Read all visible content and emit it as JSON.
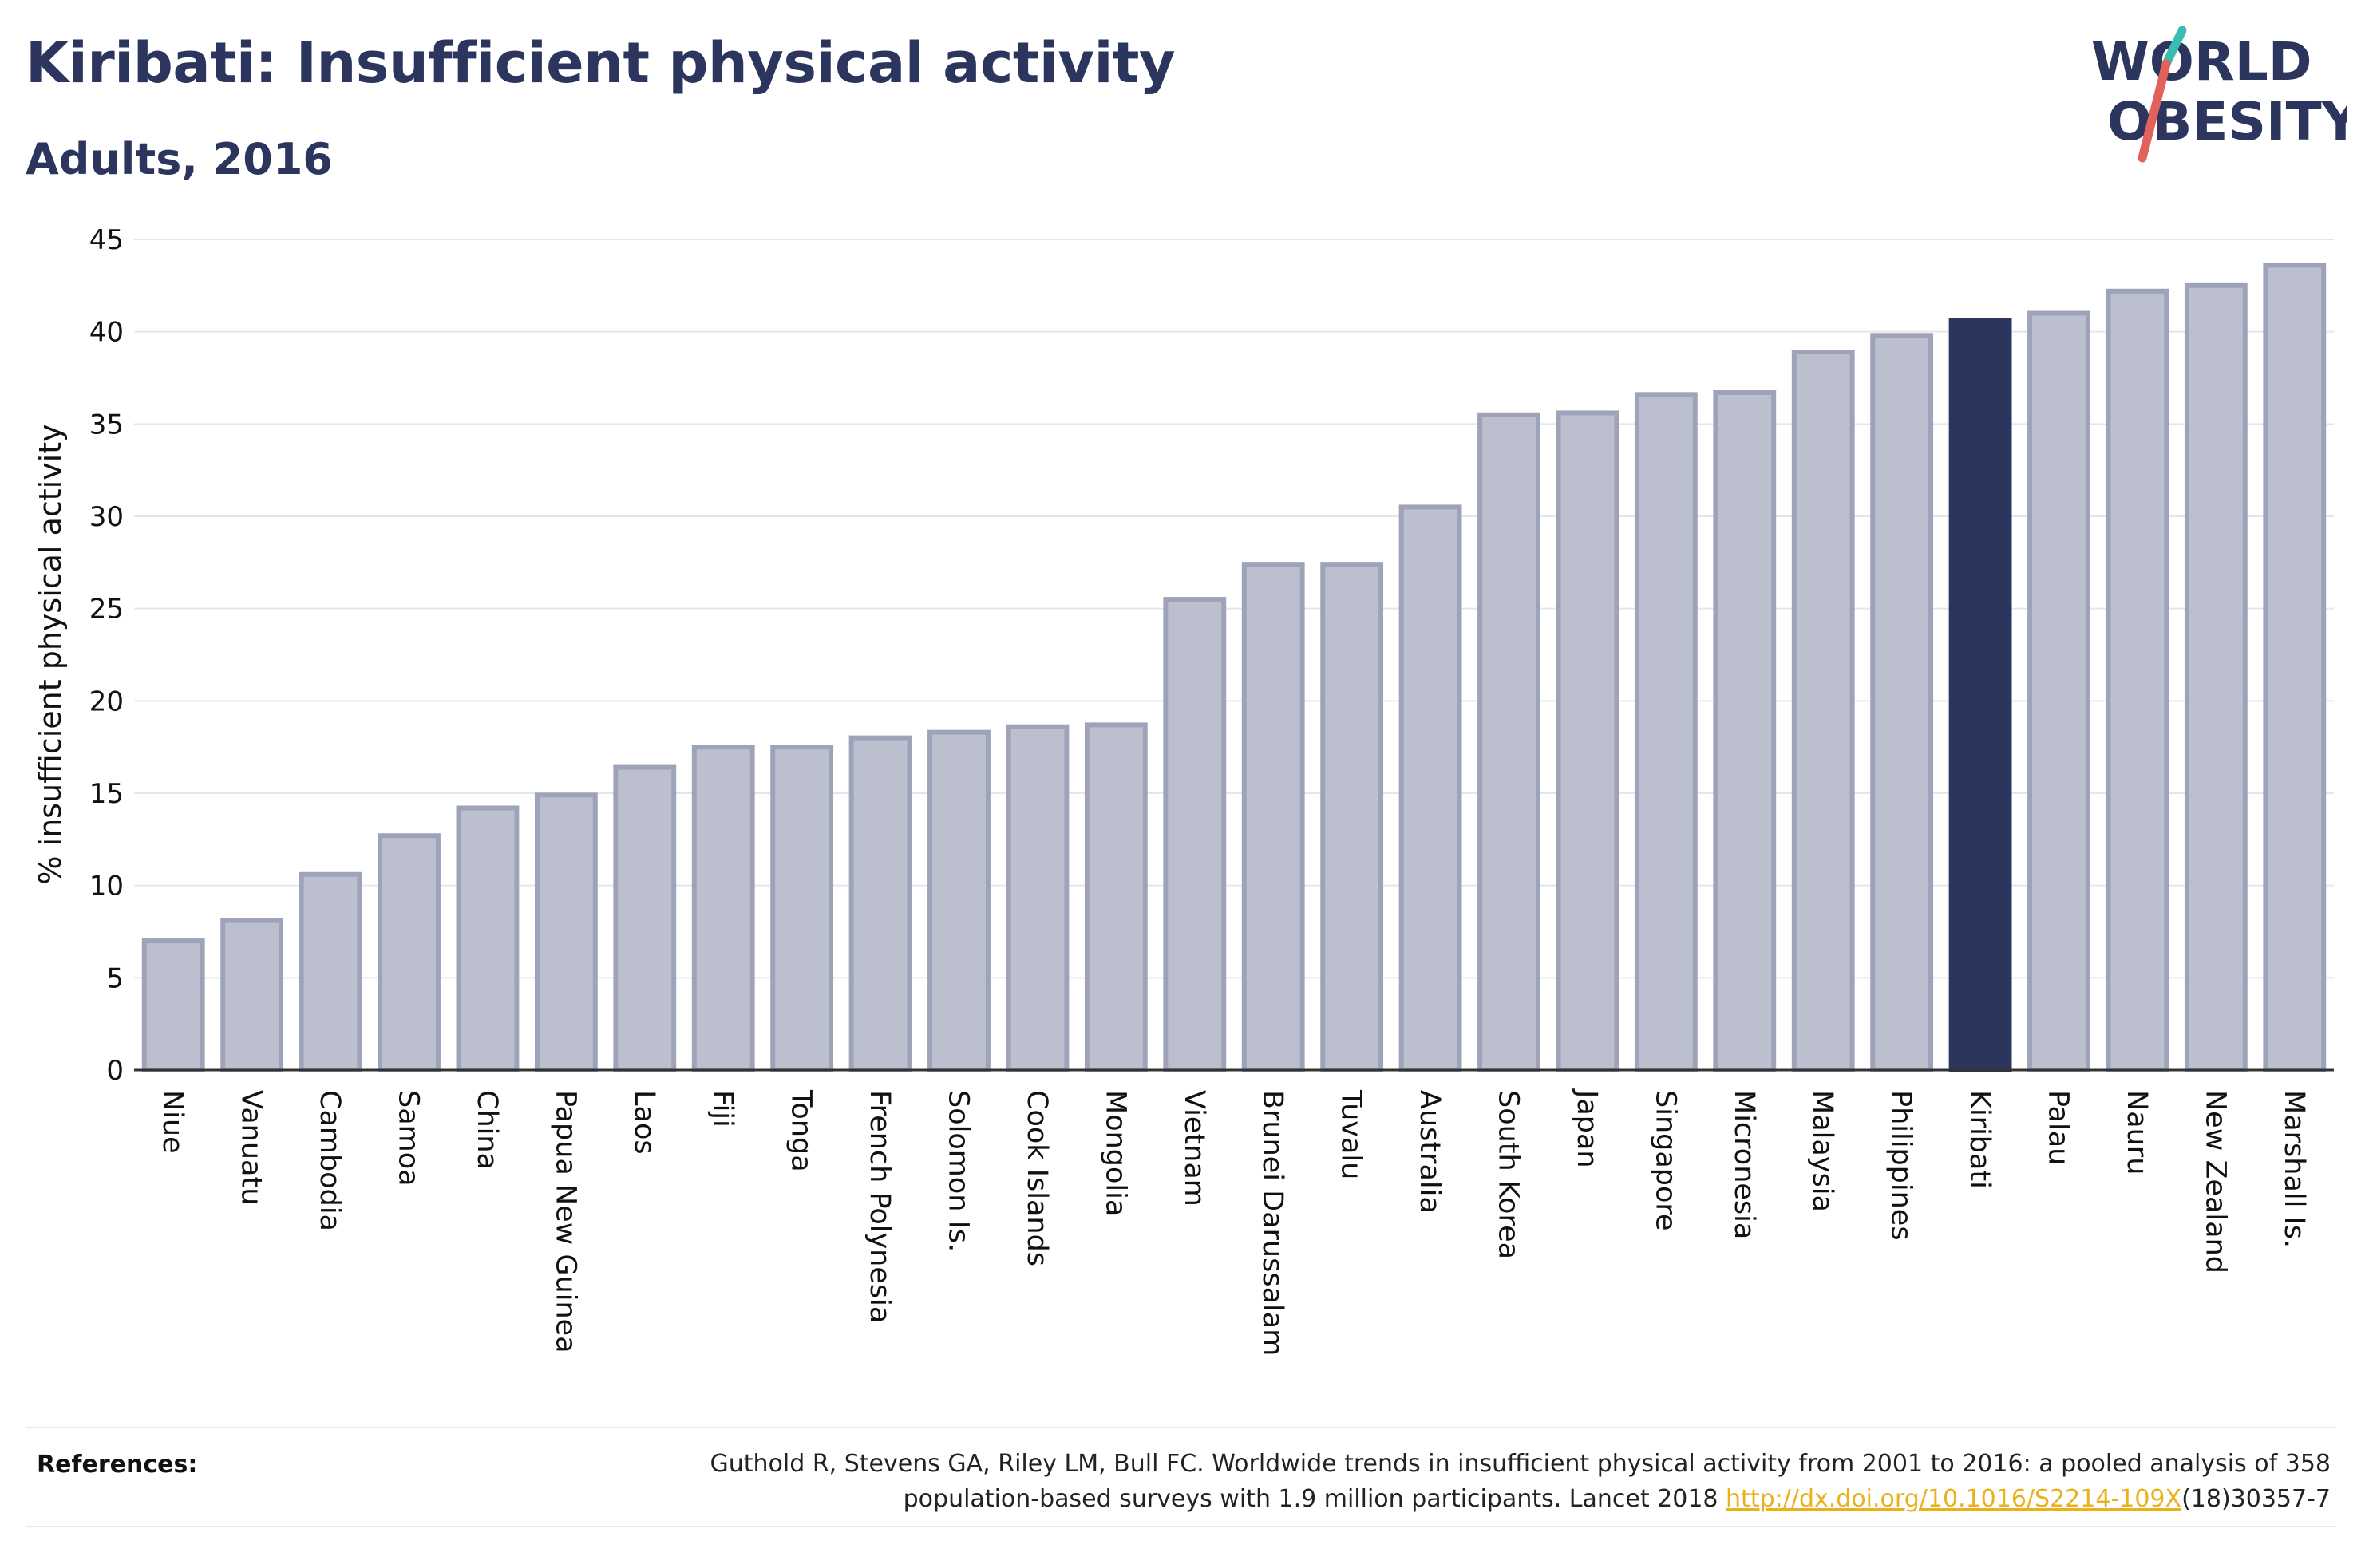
{
  "header": {
    "title": "Kiribati: Insufficient physical activity",
    "subtitle": "Adults, 2016"
  },
  "logo": {
    "line1": "WORLD",
    "line2": "OBESITY"
  },
  "chart_data": {
    "type": "bar",
    "ylabel": "% insufficient physical activity",
    "ylim": [
      0,
      45
    ],
    "yticks": [
      0,
      5,
      10,
      15,
      20,
      25,
      30,
      35,
      40,
      45
    ],
    "grid": true,
    "highlight": "Kiribati",
    "colors": {
      "bar": "#bcc0ce",
      "bar_border": "#9ea3b9",
      "highlight": "#2b355e"
    },
    "categories": [
      "Niue",
      "Vanuatu",
      "Cambodia",
      "Samoa",
      "China",
      "Papua New Guinea",
      "Laos",
      "Fiji",
      "Tonga",
      "French Polynesia",
      "Solomon Is.",
      "Cook Islands",
      "Mongolia",
      "Vietnam",
      "Brunei Darussalam",
      "Tuvalu",
      "Australia",
      "South Korea",
      "Japan",
      "Singapore",
      "Micronesia",
      "Malaysia",
      "Philippines",
      "Kiribati",
      "Palau",
      "Nauru",
      "New Zealand",
      "Marshall Is."
    ],
    "values": [
      7.0,
      8.1,
      10.6,
      12.7,
      14.2,
      14.9,
      16.4,
      17.5,
      17.5,
      18.0,
      18.3,
      18.6,
      18.7,
      25.5,
      27.4,
      27.4,
      30.5,
      35.5,
      35.6,
      36.6,
      36.7,
      38.9,
      39.8,
      40.6,
      41.0,
      42.2,
      42.5,
      43.6
    ]
  },
  "references": {
    "label": "References:",
    "line1": "Guthold R, Stevens GA, Riley LM, Bull FC. Worldwide trends in insufficient physical activity from 2001 to 2016: a pooled analysis of 358",
    "line2_pre": "population-based surveys with 1.9 million participants. Lancet 2018 ",
    "link": "http://dx.doi.org/10.1016/S2214-109X",
    "line2_post": "(18)30357-7"
  }
}
